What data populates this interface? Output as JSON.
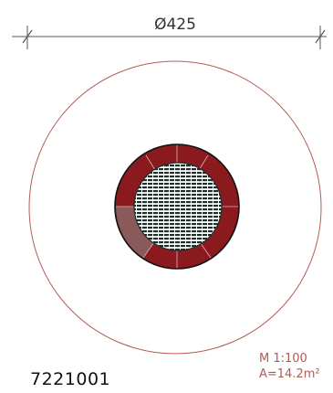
{
  "dimension": {
    "label": "Ø425"
  },
  "scale": {
    "ratio": "M 1:100",
    "area": "A=14.2m²"
  },
  "code": "7221001",
  "colors": {
    "line": "#b35a55",
    "dim": "#555555",
    "ring": "#8b1a1f",
    "ring_light": "#8a5a5a",
    "hatch": "#1e2e2a",
    "outline": "#111111"
  }
}
